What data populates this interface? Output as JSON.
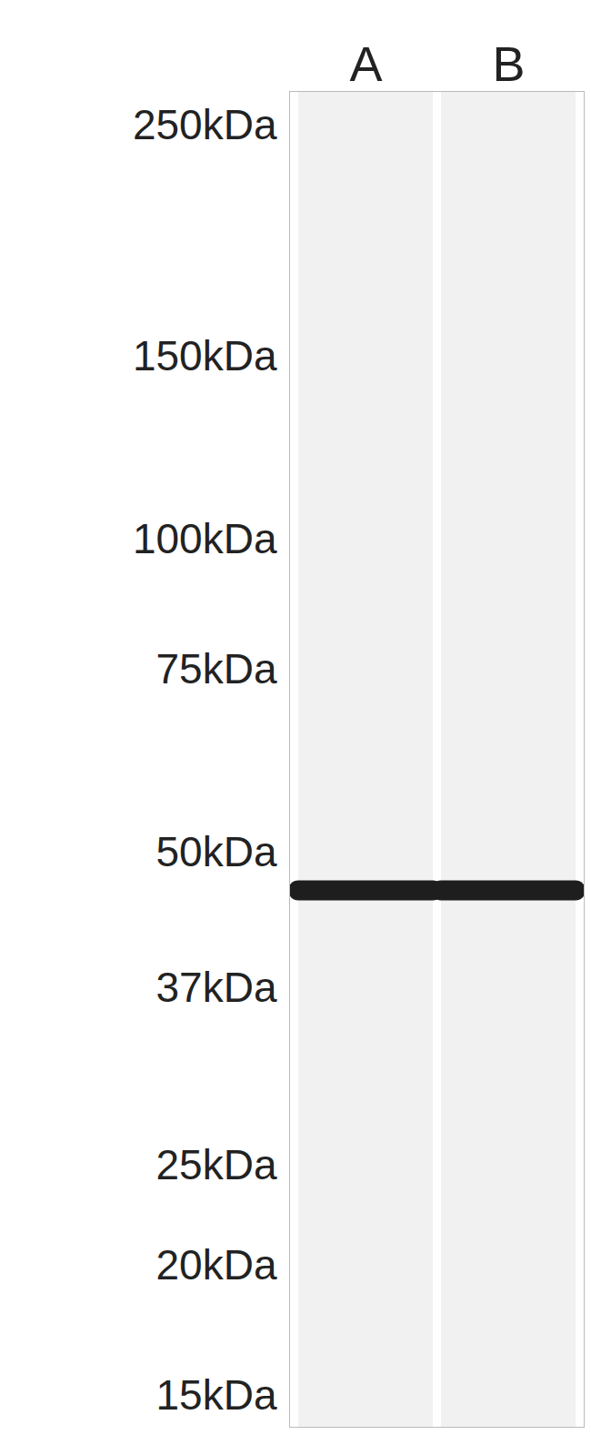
{
  "chart_data": {
    "type": "blot",
    "categories": [
      "A",
      "B"
    ],
    "values": [
      46,
      46
    ],
    "color": "#1e1e1e",
    "log": "y",
    "ylim": [
      14,
      270
    ],
    "yticks": [
      {
        "value": 250,
        "label": "250kDa"
      },
      {
        "value": 150,
        "label": "150kDa"
      },
      {
        "value": 100,
        "label": "100kDa"
      },
      {
        "value": 75,
        "label": "75kDa"
      },
      {
        "value": 50,
        "label": "50kDa"
      },
      {
        "value": 37,
        "label": "37kDa"
      },
      {
        "value": 25,
        "label": "25kDa"
      },
      {
        "value": 20,
        "label": "20kDa"
      },
      {
        "value": 15,
        "label": "15kDa"
      }
    ],
    "grid": false
  }
}
